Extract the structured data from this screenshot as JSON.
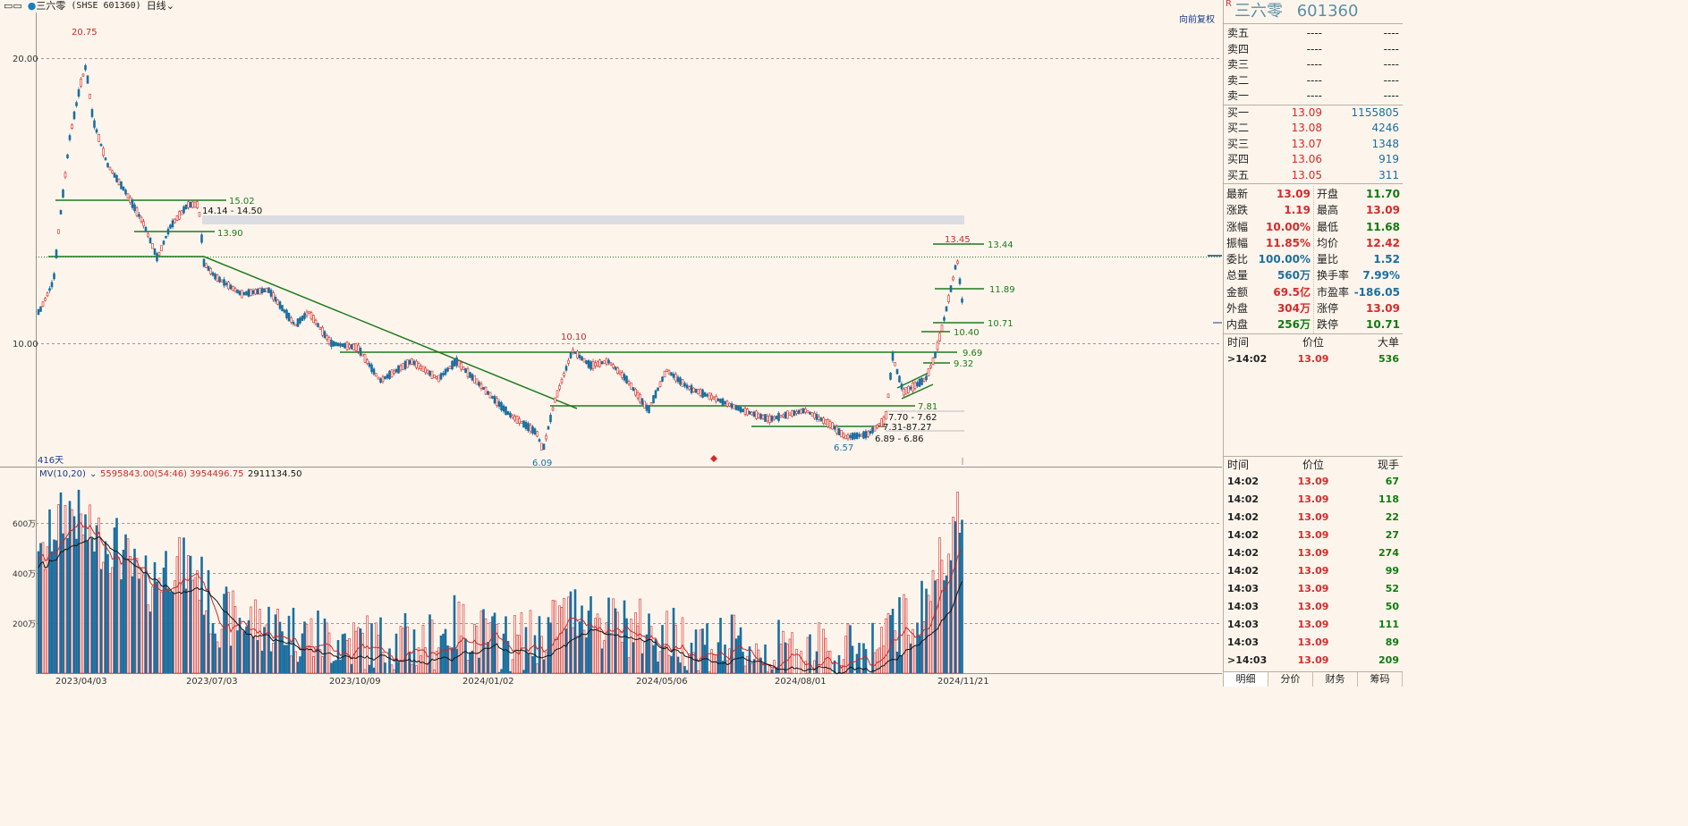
{
  "topbar": {
    "icon": "▭▭",
    "name": "三六零",
    "code": "(SHSE 601360)",
    "period": "日线",
    "restore": "向前复权"
  },
  "chart": {
    "y_labels": [
      "20.00",
      "10.00"
    ],
    "price_marks": [
      {
        "text": "20.75",
        "color": "#c92a2a"
      },
      {
        "text": "6.09",
        "color": "#1a6fa0"
      },
      {
        "text": "10.10",
        "color": "#c92a2a"
      },
      {
        "text": "6.57",
        "color": "#1a6fa0"
      },
      {
        "text": "13.45",
        "color": "#c92a2a"
      }
    ],
    "levels": [
      "15.02",
      "13.90",
      "13.44",
      "11.89",
      "10.71",
      "10.40",
      "9.69",
      "9.32",
      "7.81"
    ],
    "ranges": [
      "14.14 - 14.50",
      "7.70 - 7.62",
      "7.31",
      "7.27",
      "6.89 - 6.86"
    ],
    "range_sep": "-8",
    "days": "416天",
    "vol_title": "MV(10,20)",
    "vol_values": [
      "5595843.00(54:46)",
      "3954496.75",
      "2911134.50"
    ],
    "vol_labels": [
      "600万",
      "400万",
      "200万"
    ],
    "dates": [
      "2023/04/03",
      "2023/07/03",
      "2023/10/09",
      "2024/01/02",
      "2024/05/06",
      "2024/08/01",
      "2024/11/21"
    ]
  },
  "panel": {
    "name": "三六零",
    "code": "601360",
    "asks": [
      {
        "label": "卖五",
        "price": "----",
        "vol": "----"
      },
      {
        "label": "卖四",
        "price": "----",
        "vol": "----"
      },
      {
        "label": "卖三",
        "price": "----",
        "vol": "----"
      },
      {
        "label": "卖二",
        "price": "----",
        "vol": "----"
      },
      {
        "label": "卖一",
        "price": "----",
        "vol": "----"
      }
    ],
    "bids": [
      {
        "label": "买一",
        "price": "13.09",
        "vol": "1155805"
      },
      {
        "label": "买二",
        "price": "13.08",
        "vol": "4246"
      },
      {
        "label": "买三",
        "price": "13.07",
        "vol": "1348"
      },
      {
        "label": "买四",
        "price": "13.06",
        "vol": "919"
      },
      {
        "label": "买五",
        "price": "13.05",
        "vol": "311"
      }
    ],
    "stats_left": [
      {
        "k": "最新",
        "v": "13.09",
        "c": "red"
      },
      {
        "k": "涨跌",
        "v": "1.19",
        "c": "red"
      },
      {
        "k": "涨幅",
        "v": "10.00%",
        "c": "red"
      },
      {
        "k": "振幅",
        "v": "11.85%",
        "c": "red"
      },
      {
        "k": "委比",
        "v": "100.00%",
        "c": "blue"
      },
      {
        "k": "总量",
        "v": "560万",
        "c": "blue"
      },
      {
        "k": "金额",
        "v": "69.5亿",
        "c": "red"
      },
      {
        "k": "外盘",
        "v": "304万",
        "c": "red"
      },
      {
        "k": "内盘",
        "v": "256万",
        "c": "green"
      }
    ],
    "stats_right": [
      {
        "k": "开盘",
        "v": "11.70",
        "c": "green"
      },
      {
        "k": "最高",
        "v": "13.09",
        "c": "red"
      },
      {
        "k": "最低",
        "v": "11.68",
        "c": "green"
      },
      {
        "k": "均价",
        "v": "12.42",
        "c": "red"
      },
      {
        "k": "量比",
        "v": "1.52",
        "c": "blue"
      },
      {
        "k": "换手率",
        "v": "7.99%",
        "c": "blue"
      },
      {
        "k": "市盈率",
        "v": "-186.05",
        "c": "blue"
      },
      {
        "k": "涨停",
        "v": "13.09",
        "c": "red"
      },
      {
        "k": "跌停",
        "v": "10.71",
        "c": "green"
      }
    ],
    "bigorder_head": [
      "时间",
      "价位",
      "大单"
    ],
    "bigorder_rows": [
      {
        "time": ">14:02",
        "price": "13.09",
        "vol": "536"
      }
    ],
    "ticks_head": [
      "时间",
      "价位",
      "现手"
    ],
    "ticks": [
      {
        "time": "14:02",
        "price": "13.09",
        "vol": "67",
        "c": "green"
      },
      {
        "time": "14:02",
        "price": "13.09",
        "vol": "118",
        "c": "green"
      },
      {
        "time": "14:02",
        "price": "13.09",
        "vol": "22",
        "c": "green"
      },
      {
        "time": "14:02",
        "price": "13.09",
        "vol": "27",
        "c": "green"
      },
      {
        "time": "14:02",
        "price": "13.09",
        "vol": "274",
        "c": "green"
      },
      {
        "time": "14:02",
        "price": "13.09",
        "vol": "99",
        "c": "green"
      },
      {
        "time": "14:03",
        "price": "13.09",
        "vol": "52",
        "c": "green"
      },
      {
        "time": "14:03",
        "price": "13.09",
        "vol": "50",
        "c": "green"
      },
      {
        "time": "14:03",
        "price": "13.09",
        "vol": "111",
        "c": "green"
      },
      {
        "time": "14:03",
        "price": "13.09",
        "vol": "89",
        "c": "green"
      },
      {
        "time": ">14:03",
        "price": "13.09",
        "vol": "209",
        "c": "green"
      }
    ],
    "tabs": [
      "明细",
      "分价",
      "财务",
      "筹码"
    ]
  }
}
